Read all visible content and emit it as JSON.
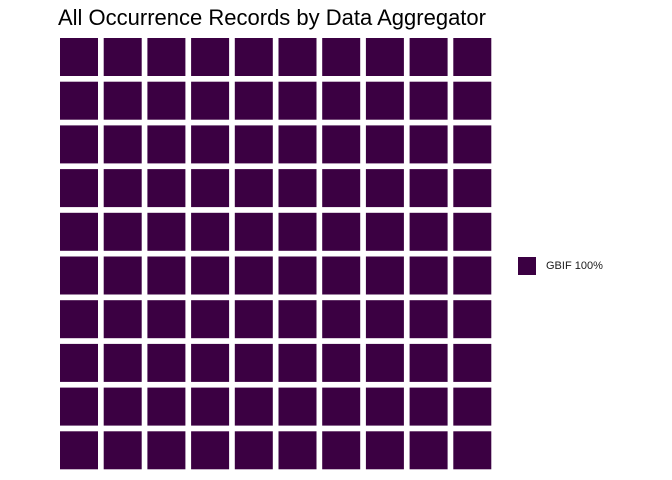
{
  "chart_data": {
    "type": "waffle",
    "title": "All Occurrence Records by Data Aggregator",
    "grid": {
      "rows": 10,
      "cols": 10
    },
    "series": [
      {
        "name": "GBIF",
        "percent": 100,
        "squares": 100,
        "color": "#3b0042",
        "legend_label": "GBIF 100%"
      }
    ],
    "legend_placement": "right",
    "gridlines": false
  }
}
